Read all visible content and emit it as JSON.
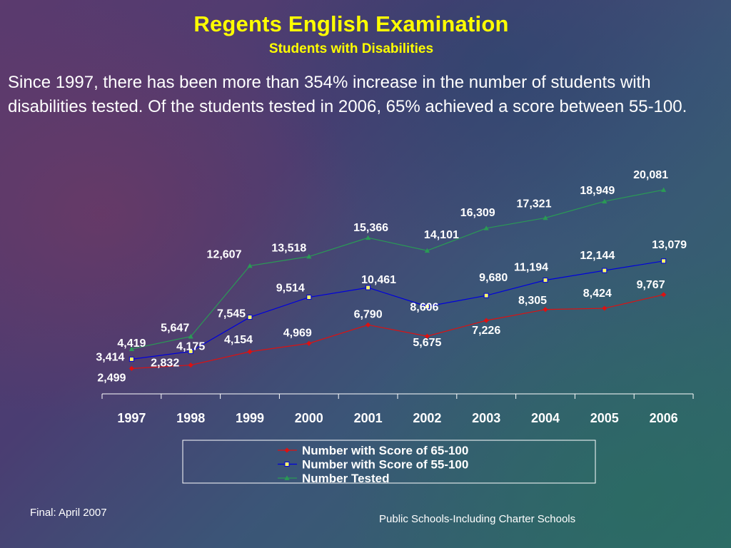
{
  "title": "Regents English Examination",
  "subtitle": "Students with Disabilities",
  "intro": "Since 1997, there has been more than 354% increase in the number of students with disabilities tested.  Of the students tested in 2006, 65% achieved a score between 55-100.",
  "footer_left": "Final: April 2007",
  "footer_right": "Public Schools-Including Charter Schools",
  "chart_data": {
    "type": "line",
    "categories": [
      "1997",
      "1998",
      "1999",
      "2000",
      "2001",
      "2002",
      "2003",
      "2004",
      "2005",
      "2006"
    ],
    "ylim": [
      0,
      21000
    ],
    "grid": false,
    "legend_placement": "bottom-center",
    "series": [
      {
        "name": "Number with Score of 65-100",
        "color": "#dd1111",
        "marker": "diamond",
        "values": [
          2499,
          2832,
          4154,
          4969,
          6790,
          5675,
          7226,
          8305,
          8424,
          9767
        ],
        "labels": [
          "2,499",
          "2,832",
          "4,154",
          "4,969",
          "6,790",
          "5,675",
          "7,226",
          "8,305",
          "8,424",
          "9,767"
        ]
      },
      {
        "name": "Number with Score of 55-100",
        "color": "#0000dd",
        "marker": "square",
        "values": [
          3414,
          4175,
          7545,
          9514,
          10461,
          8606,
          9680,
          11194,
          12144,
          13079
        ],
        "labels": [
          "3,414",
          "4,175",
          "7,545",
          "9,514",
          "10,461",
          "8,606",
          "9,680",
          "11,194",
          "12,144",
          "13,079"
        ]
      },
      {
        "name": "Number Tested",
        "color": "#2a9a55",
        "marker": "triangle",
        "values": [
          4419,
          5647,
          12607,
          13518,
          15366,
          14101,
          16309,
          17321,
          18949,
          20081
        ],
        "labels": [
          "4,419",
          "5,647",
          "12,607",
          "13,518",
          "15,366",
          "14,101",
          "16,309",
          "17,321",
          "18,949",
          "20,081"
        ]
      }
    ]
  }
}
